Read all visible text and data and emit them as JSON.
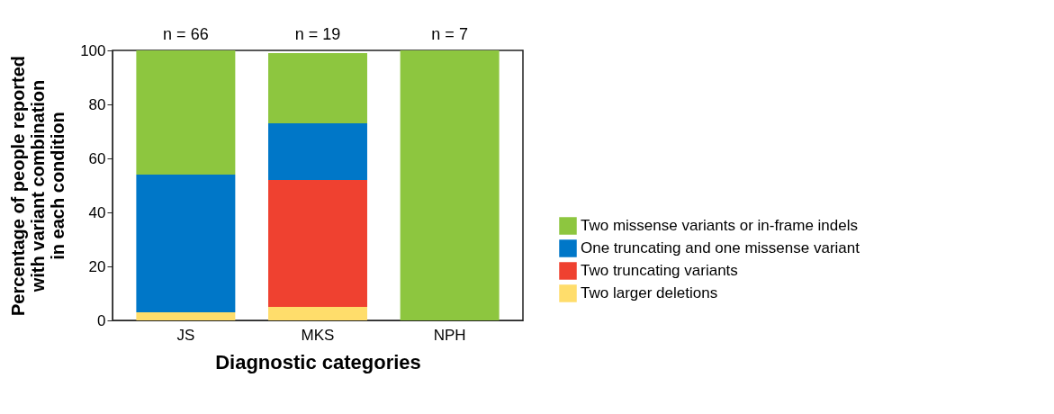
{
  "chart_data": {
    "type": "bar",
    "stacked": true,
    "categories": [
      "JS",
      "MKS",
      "NPH"
    ],
    "xlabel": "Diagnostic categories",
    "ylabel": "Percentage of people reported\nwith variant combination\nin each condition",
    "ylim": [
      0,
      100
    ],
    "yticks": [
      0,
      20,
      40,
      60,
      80,
      100
    ],
    "series": [
      {
        "name": "Two larger deletions",
        "color": "#ffdd6b",
        "values": [
          3,
          5,
          0
        ]
      },
      {
        "name": "Two truncating variants",
        "color": "#ef4130",
        "values": [
          0,
          47,
          0
        ]
      },
      {
        "name": "One truncating and one missense variant",
        "color": "#0077c8",
        "values": [
          51,
          21,
          0
        ]
      },
      {
        "name": "Two missense variants or in-frame indels",
        "color": "#8dc63f",
        "values": [
          46,
          26,
          100
        ]
      }
    ],
    "annotations": [
      "n = 66",
      "n = 19",
      "n = 7"
    ],
    "legend": "right",
    "grid": false
  }
}
